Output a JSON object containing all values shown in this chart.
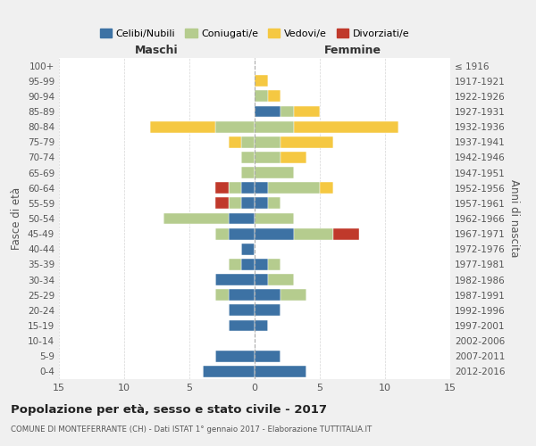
{
  "age_groups": [
    "0-4",
    "5-9",
    "10-14",
    "15-19",
    "20-24",
    "25-29",
    "30-34",
    "35-39",
    "40-44",
    "45-49",
    "50-54",
    "55-59",
    "60-64",
    "65-69",
    "70-74",
    "75-79",
    "80-84",
    "85-89",
    "90-94",
    "95-99",
    "100+"
  ],
  "birth_years": [
    "2012-2016",
    "2007-2011",
    "2002-2006",
    "1997-2001",
    "1992-1996",
    "1987-1991",
    "1982-1986",
    "1977-1981",
    "1972-1976",
    "1967-1971",
    "1962-1966",
    "1957-1961",
    "1952-1956",
    "1947-1951",
    "1942-1946",
    "1937-1941",
    "1932-1936",
    "1927-1931",
    "1922-1926",
    "1917-1921",
    "≤ 1916"
  ],
  "colors": {
    "celibi": "#3d72a4",
    "coniugati": "#b5cc8e",
    "vedovi": "#f5c842",
    "divorziati": "#c0392b"
  },
  "maschi": {
    "celibi": [
      4,
      3,
      0,
      2,
      2,
      2,
      3,
      1,
      1,
      2,
      2,
      1,
      1,
      0,
      0,
      0,
      0,
      0,
      0,
      0,
      0
    ],
    "coniugati": [
      0,
      0,
      0,
      0,
      0,
      1,
      0,
      1,
      0,
      1,
      5,
      1,
      1,
      1,
      1,
      1,
      3,
      0,
      0,
      0,
      0
    ],
    "vedovi": [
      0,
      0,
      0,
      0,
      0,
      0,
      0,
      0,
      0,
      0,
      0,
      0,
      0,
      0,
      0,
      1,
      5,
      0,
      0,
      0,
      0
    ],
    "divorziati": [
      0,
      0,
      0,
      0,
      0,
      0,
      0,
      0,
      0,
      0,
      0,
      1,
      1,
      0,
      0,
      0,
      0,
      0,
      0,
      0,
      0
    ]
  },
  "femmine": {
    "celibi": [
      4,
      2,
      0,
      1,
      2,
      2,
      1,
      1,
      0,
      3,
      0,
      1,
      1,
      0,
      0,
      0,
      0,
      2,
      0,
      0,
      0
    ],
    "coniugati": [
      0,
      0,
      0,
      0,
      0,
      2,
      2,
      1,
      0,
      3,
      3,
      1,
      4,
      3,
      2,
      2,
      3,
      1,
      1,
      0,
      0
    ],
    "vedovi": [
      0,
      0,
      0,
      0,
      0,
      0,
      0,
      0,
      0,
      0,
      0,
      0,
      1,
      0,
      2,
      4,
      8,
      2,
      1,
      1,
      0
    ],
    "divorziati": [
      0,
      0,
      0,
      0,
      0,
      0,
      0,
      0,
      0,
      2,
      0,
      0,
      0,
      0,
      0,
      0,
      0,
      0,
      0,
      0,
      0
    ]
  },
  "xlim": 15,
  "title": "Popolazione per età, sesso e stato civile - 2017",
  "subtitle": "COMUNE DI MONTEFERRANTE (CH) - Dati ISTAT 1° gennaio 2017 - Elaborazione TUTTITALIA.IT",
  "ylabel_left": "Fasce di età",
  "ylabel_right": "Anni di nascita",
  "xlabel_maschi": "Maschi",
  "xlabel_femmine": "Femmine",
  "legend_labels": [
    "Celibi/Nubili",
    "Coniugati/e",
    "Vedovi/e",
    "Divorziati/e"
  ],
  "background_color": "#f0f0f0",
  "plot_bg_color": "#ffffff"
}
